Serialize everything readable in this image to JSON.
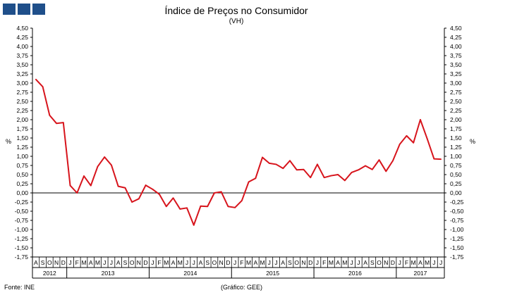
{
  "logo": {
    "squares": 3,
    "color": "#1f4f8a"
  },
  "title": "Índice de Preços no Consumidor",
  "subtitle": "(VH)",
  "footer": {
    "source": "Fonte: INE",
    "credit": "(Gráfico: GEE)"
  },
  "chart_data": {
    "type": "line",
    "ylabel": "%",
    "ylabel_right": "%",
    "ylim": [
      -1.75,
      4.5
    ],
    "y_ticks": [
      "4,50",
      "4,25",
      "4,00",
      "3,75",
      "3,50",
      "3,25",
      "3,00",
      "2,75",
      "2,50",
      "2,25",
      "2,00",
      "1,75",
      "1,50",
      "1,25",
      "1,00",
      "0,75",
      "0,50",
      "0,25",
      "0,00",
      "-0,25",
      "-0,50",
      "-0,75",
      "-1,00",
      "-1,25",
      "-1,50",
      "-1,75"
    ],
    "month_labels": [
      "A",
      "S",
      "O",
      "N",
      "D",
      "J",
      "F",
      "M",
      "A",
      "M",
      "J",
      "J",
      "A",
      "S",
      "O",
      "N",
      "D",
      "J",
      "F",
      "M",
      "A",
      "M",
      "J",
      "J",
      "A",
      "S",
      "O",
      "N",
      "D",
      "J",
      "F",
      "M",
      "A",
      "M",
      "J",
      "J",
      "A",
      "S",
      "O",
      "N",
      "D",
      "J",
      "F",
      "M",
      "A",
      "M",
      "J",
      "J",
      "A",
      "S",
      "O",
      "N",
      "D",
      "J",
      "F",
      "M",
      "A",
      "M",
      "J",
      "J"
    ],
    "years": [
      {
        "label": "2012",
        "months": 5
      },
      {
        "label": "2013",
        "months": 12
      },
      {
        "label": "2014",
        "months": 12
      },
      {
        "label": "2015",
        "months": 12
      },
      {
        "label": "2016",
        "months": 12
      },
      {
        "label": "2017",
        "months": 7
      }
    ],
    "series": [
      {
        "color": "#d7141c",
        "values": [
          3.1,
          2.9,
          2.12,
          1.9,
          1.92,
          0.2,
          0.0,
          0.46,
          0.2,
          0.72,
          0.98,
          0.76,
          0.18,
          0.14,
          -0.25,
          -0.16,
          0.21,
          0.1,
          -0.04,
          -0.37,
          -0.14,
          -0.44,
          -0.41,
          -0.88,
          -0.36,
          -0.37,
          0.0,
          0.03,
          -0.37,
          -0.4,
          -0.21,
          0.3,
          0.4,
          0.97,
          0.81,
          0.78,
          0.67,
          0.88,
          0.63,
          0.64,
          0.42,
          0.78,
          0.42,
          0.47,
          0.5,
          0.34,
          0.56,
          0.63,
          0.74,
          0.64,
          0.9,
          0.59,
          0.88,
          1.33,
          1.56,
          1.37,
          2.0,
          1.48,
          0.93,
          0.92
        ]
      }
    ]
  }
}
